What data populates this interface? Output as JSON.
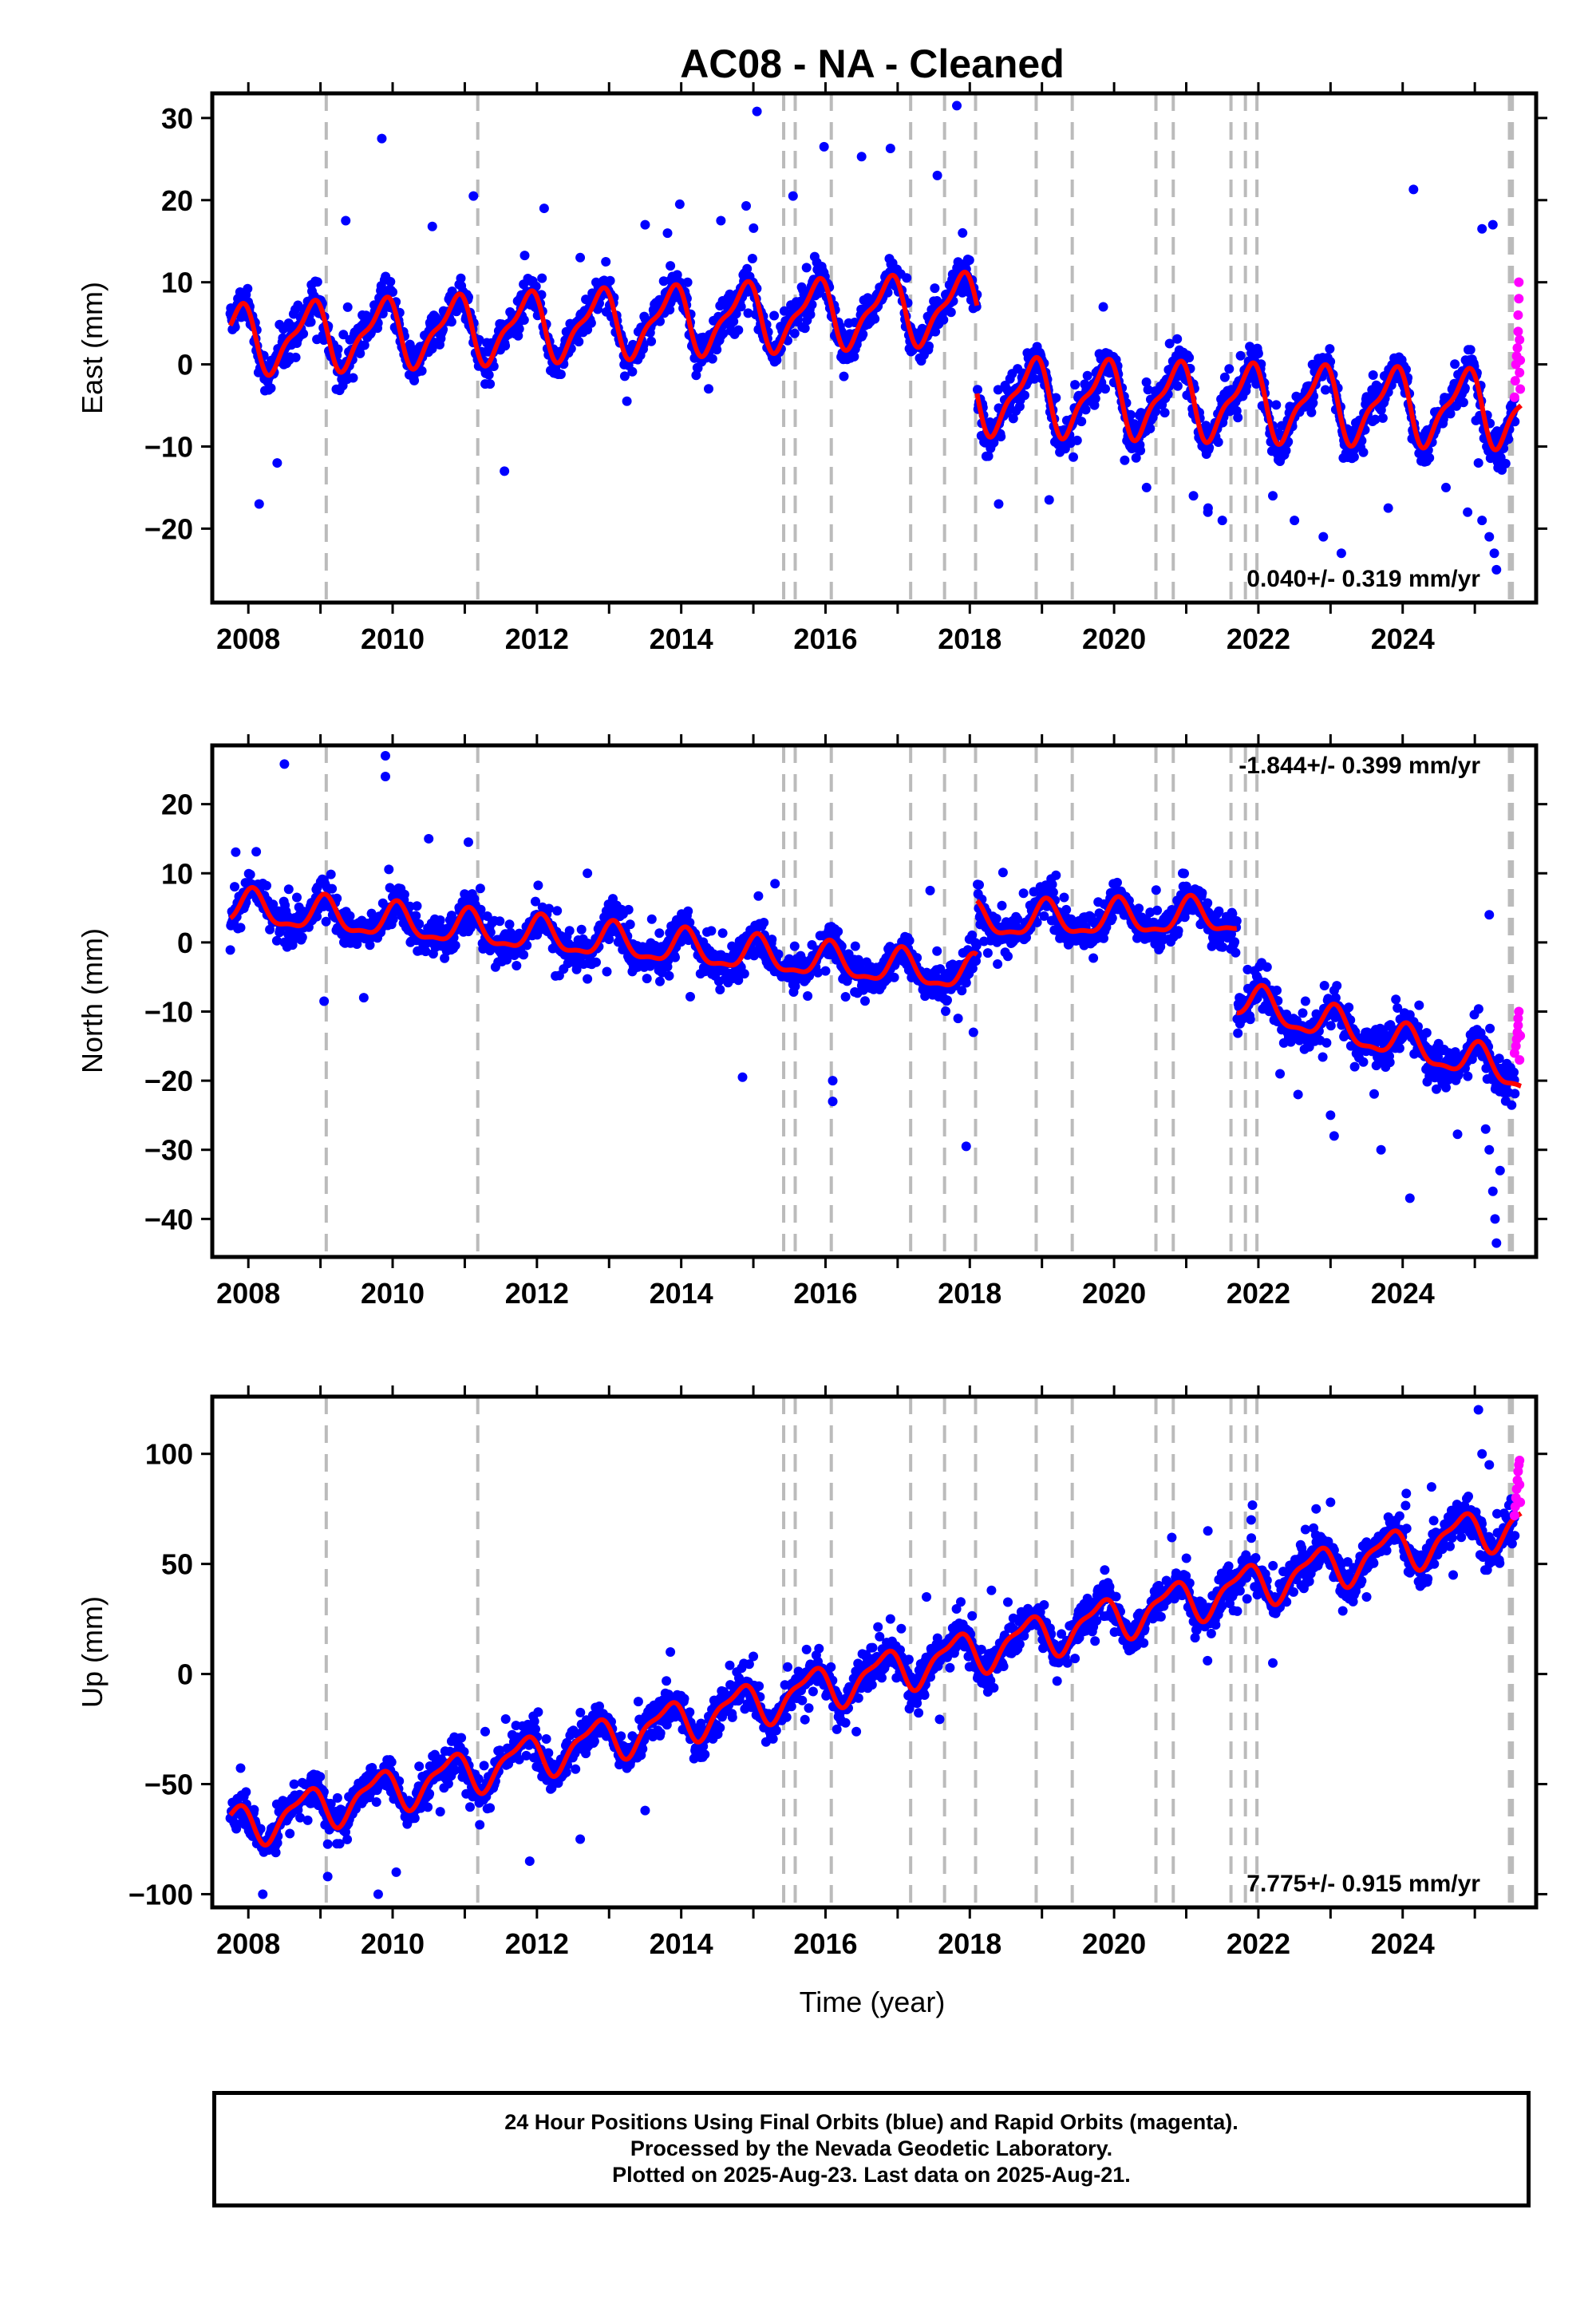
{
  "title": "AC08  - NA - Cleaned",
  "xlabel": "Time (year)",
  "footer": {
    "line1": "24 Hour Positions Using Final Orbits (blue) and Rapid Orbits (magenta).",
    "line2": "Processed by the Nevada Geodetic Laboratory.",
    "line3": "Plotted on 2025-Aug-23. Last data on 2025-Aug-21."
  },
  "colors": {
    "final": "#0000ff",
    "rapid": "#ff00ff",
    "model": "#ff0000",
    "events": "#bbbbbb",
    "frame": "#000000"
  },
  "chart_data": [
    {
      "type": "scatter",
      "panel": "east",
      "ylabel": "East (mm)",
      "rate_label": "0.040+/- 0.319 mm/yr",
      "xlim": [
        2007.5,
        2025.85
      ],
      "ylim": [
        -29,
        33
      ],
      "yticks": [
        -20,
        -10,
        0,
        10,
        20,
        30
      ],
      "xticks": [
        2008,
        2010,
        2012,
        2014,
        2016,
        2018,
        2020,
        2022,
        2024
      ],
      "event_lines": [
        2009.08,
        2011.18,
        2015.42,
        2015.58,
        2016.08,
        2017.18,
        2017.65,
        2018.08,
        2018.92,
        2019.42,
        2020.58,
        2020.82,
        2021.62,
        2021.82,
        2021.98,
        2025.48,
        2025.52
      ],
      "series": [
        {
          "kind": "model",
          "segments": [
            {
              "start": 2007.75,
              "end": 2018.1,
              "base": 3.0,
              "trend": 0.38,
              "amp": 3.8,
              "phase": 2.5
            },
            {
              "start": 2018.1,
              "end": 2025.64,
              "base": -3.8,
              "trend": -0.22,
              "amp": 4.2,
              "phase": 2.5
            }
          ]
        },
        {
          "kind": "rapid",
          "values": [
            [
              2025.55,
              -4
            ],
            [
              2025.56,
              -2
            ],
            [
              2025.57,
              0
            ],
            [
              2025.58,
              1
            ],
            [
              2025.59,
              2
            ],
            [
              2025.6,
              4
            ],
            [
              2025.6,
              6
            ],
            [
              2025.61,
              8
            ],
            [
              2025.61,
              10
            ],
            [
              2025.62,
              -1
            ],
            [
              2025.62,
              3
            ],
            [
              2025.63,
              -3
            ],
            [
              2025.63,
              0.5
            ]
          ]
        },
        {
          "kind": "outliers",
          "values": [
            [
              2008.15,
              -17
            ],
            [
              2008.4,
              -12
            ],
            [
              2009.35,
              17.5
            ],
            [
              2009.85,
              27.5
            ],
            [
              2010.55,
              16.8
            ],
            [
              2011.12,
              20.5
            ],
            [
              2011.55,
              -13
            ],
            [
              2012.1,
              19
            ],
            [
              2012.6,
              13
            ],
            [
              2013.5,
              17
            ],
            [
              2013.85,
              12
            ],
            [
              2013.98,
              19.5
            ],
            [
              2014.55,
              17.5
            ],
            [
              2014.9,
              19.3
            ],
            [
              2015.05,
              30.8
            ],
            [
              2015.55,
              20.5
            ],
            [
              2015.98,
              26.5
            ],
            [
              2016.5,
              25.3
            ],
            [
              2016.9,
              26.3
            ],
            [
              2017.55,
              23
            ],
            [
              2017.82,
              31.5
            ],
            [
              2017.9,
              16
            ],
            [
              2018.4,
              -17
            ],
            [
              2019.1,
              -16.5
            ],
            [
              2019.85,
              7
            ],
            [
              2020.45,
              -15
            ],
            [
              2021.1,
              -16
            ],
            [
              2021.3,
              -18
            ],
            [
              2021.5,
              -19
            ],
            [
              2022.2,
              -16
            ],
            [
              2022.5,
              -19
            ],
            [
              2022.9,
              -21
            ],
            [
              2023.15,
              -23
            ],
            [
              2023.8,
              -17.5
            ],
            [
              2024.15,
              21.3
            ],
            [
              2024.6,
              -15
            ],
            [
              2024.9,
              -18
            ],
            [
              2025.1,
              -19
            ],
            [
              2025.2,
              -21
            ],
            [
              2025.27,
              -23
            ],
            [
              2025.3,
              -25
            ],
            [
              2025.1,
              16.5
            ],
            [
              2025.25,
              17
            ],
            [
              2025.05,
              -12
            ]
          ]
        }
      ]
    },
    {
      "type": "scatter",
      "panel": "north",
      "ylabel": "North (mm)",
      "rate_label": "-1.844+/- 0.399 mm/yr",
      "xlim": [
        2007.5,
        2025.85
      ],
      "ylim": [
        -45.5,
        28.5
      ],
      "yticks": [
        -40,
        -30,
        -20,
        -10,
        0,
        10,
        20
      ],
      "xticks": [
        2008,
        2010,
        2012,
        2014,
        2016,
        2018,
        2020,
        2022,
        2024
      ],
      "event_lines": [
        2009.08,
        2011.18,
        2015.42,
        2015.58,
        2016.08,
        2017.18,
        2017.65,
        2018.08,
        2018.92,
        2019.42,
        2020.58,
        2020.82,
        2021.62,
        2021.82,
        2021.98,
        2025.48,
        2025.52
      ],
      "series": [
        {
          "kind": "model",
          "segments": [
            {
              "start": 2007.75,
              "end": 2018.1,
              "base": 5.0,
              "trend": -0.95,
              "amp": 2.4,
              "phase": 1.2
            },
            {
              "start": 2018.1,
              "end": 2021.7,
              "base": 3.0,
              "trend": 0.2,
              "amp": 2.4,
              "phase": 1.2
            },
            {
              "start": 2021.7,
              "end": 2025.64,
              "base": -8.5,
              "trend": -2.7,
              "amp": 2.4,
              "phase": 1.2
            }
          ]
        },
        {
          "kind": "rapid",
          "values": [
            [
              2025.55,
              -16
            ],
            [
              2025.57,
              -15
            ],
            [
              2025.58,
              -14
            ],
            [
              2025.59,
              -13
            ],
            [
              2025.6,
              -12
            ],
            [
              2025.6,
              -11
            ],
            [
              2025.61,
              -10
            ],
            [
              2025.62,
              -17
            ],
            [
              2025.63,
              -13.5
            ]
          ]
        },
        {
          "kind": "outliers",
          "values": [
            [
              2008.5,
              25.8
            ],
            [
              2009.05,
              -8.5
            ],
            [
              2009.6,
              -8
            ],
            [
              2009.9,
              27
            ],
            [
              2009.9,
              24
            ],
            [
              2010.5,
              15
            ],
            [
              2011.05,
              14.5
            ],
            [
              2012.7,
              10
            ],
            [
              2014.85,
              -19.5
            ],
            [
              2015.3,
              8.5
            ],
            [
              2016.1,
              -20
            ],
            [
              2016.1,
              -23
            ],
            [
              2017.45,
              7.5
            ],
            [
              2017.95,
              -29.5
            ],
            [
              2018.05,
              -13
            ],
            [
              2020.95,
              10
            ],
            [
              2022.3,
              -19
            ],
            [
              2022.55,
              -22
            ],
            [
              2023.0,
              -25
            ],
            [
              2023.05,
              -28
            ],
            [
              2023.7,
              -30
            ],
            [
              2024.1,
              -37
            ],
            [
              2024.6,
              -21
            ],
            [
              2025.15,
              -27
            ],
            [
              2025.2,
              -30
            ],
            [
              2025.25,
              -36
            ],
            [
              2025.28,
              -40
            ],
            [
              2025.3,
              -43.5
            ],
            [
              2025.2,
              4
            ],
            [
              2025.35,
              -33
            ]
          ]
        }
      ]
    },
    {
      "type": "scatter",
      "panel": "up",
      "ylabel": "Up (mm)",
      "rate_label": "7.775+/- 0.915 mm/yr",
      "xlim": [
        2007.5,
        2025.85
      ],
      "ylim": [
        -106,
        126
      ],
      "yticks": [
        -100,
        -50,
        0,
        50,
        100
      ],
      "xticks": [
        2008,
        2010,
        2012,
        2014,
        2016,
        2018,
        2020,
        2022,
        2024
      ],
      "event_lines": [
        2009.08,
        2011.18,
        2015.42,
        2015.58,
        2016.08,
        2017.18,
        2017.65,
        2018.08,
        2018.92,
        2019.42,
        2020.58,
        2020.82,
        2021.62,
        2021.82,
        2021.98,
        2025.48,
        2025.52
      ],
      "series": [
        {
          "kind": "model",
          "segments": [
            {
              "start": 2007.75,
              "end": 2025.64,
              "base": -70.0,
              "trend": 7.8,
              "amp": 9.0,
              "phase": 2.9
            }
          ]
        },
        {
          "kind": "rapid",
          "values": [
            [
              2025.55,
              72
            ],
            [
              2025.56,
              76
            ],
            [
              2025.57,
              80
            ],
            [
              2025.58,
              84
            ],
            [
              2025.59,
              88
            ],
            [
              2025.6,
              92
            ],
            [
              2025.61,
              95
            ],
            [
              2025.62,
              97
            ],
            [
              2025.63,
              78
            ],
            [
              2025.62,
              86
            ]
          ]
        },
        {
          "kind": "outliers",
          "values": [
            [
              2008.2,
              -100
            ],
            [
              2009.1,
              -92
            ],
            [
              2009.8,
              -100
            ],
            [
              2010.05,
              -90
            ],
            [
              2011.9,
              -85
            ],
            [
              2012.6,
              -75
            ],
            [
              2013.5,
              -62
            ],
            [
              2013.85,
              10
            ],
            [
              2015.0,
              8
            ],
            [
              2016.15,
              -12
            ],
            [
              2016.9,
              25
            ],
            [
              2017.4,
              35
            ],
            [
              2018.3,
              38
            ],
            [
              2020.8,
              62
            ],
            [
              2021.3,
              65
            ],
            [
              2021.5,
              45
            ],
            [
              2021.9,
              70
            ],
            [
              2022.2,
              5
            ],
            [
              2022.8,
              75
            ],
            [
              2023.0,
              78
            ],
            [
              2024.05,
              82
            ],
            [
              2024.4,
              85
            ],
            [
              2025.05,
              120
            ],
            [
              2025.1,
              100
            ],
            [
              2025.2,
              95
            ],
            [
              2024.7,
              45
            ],
            [
              2023.5,
              35
            ]
          ]
        }
      ]
    }
  ]
}
